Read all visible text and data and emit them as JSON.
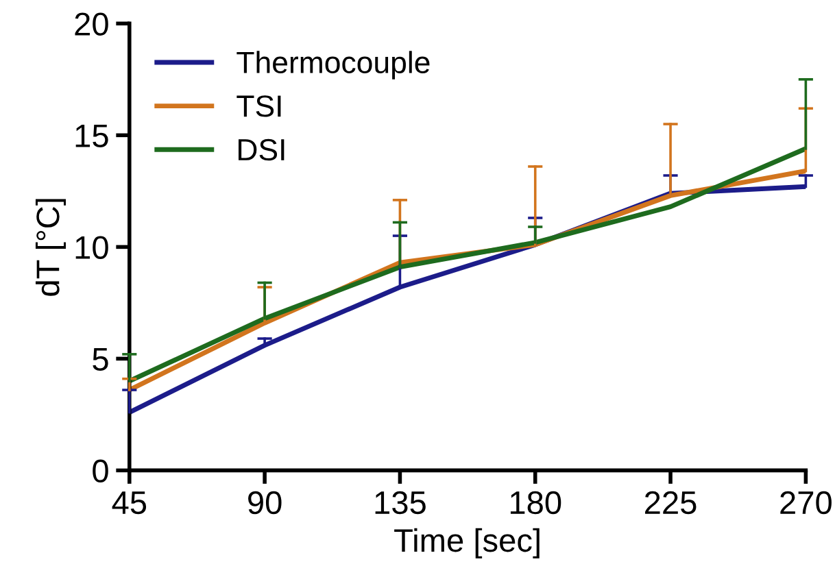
{
  "chart_data": {
    "type": "line",
    "xlabel": "Time [sec]",
    "ylabel": "dT [°C]",
    "x": [
      45,
      90,
      135,
      180,
      225,
      270
    ],
    "series": [
      {
        "name": "Thermocouple",
        "color": "#1c1c8a",
        "values": [
          2.6,
          5.6,
          8.2,
          10.1,
          12.4,
          12.7
        ],
        "errors": [
          [
            2.6,
            3.6
          ],
          [
            5.6,
            5.9
          ],
          [
            8.2,
            10.5
          ],
          [
            10.1,
            11.3
          ],
          [
            12.4,
            13.2
          ],
          [
            12.7,
            13.2
          ]
        ]
      },
      {
        "name": "TSI",
        "color": "#d2751e",
        "values": [
          3.6,
          6.6,
          9.3,
          10.1,
          12.3,
          13.4
        ],
        "errors": [
          [
            3.6,
            4.1
          ],
          [
            6.6,
            8.2
          ],
          [
            9.3,
            12.1
          ],
          [
            10.1,
            13.6
          ],
          [
            12.3,
            15.5
          ],
          [
            13.4,
            16.2
          ]
        ]
      },
      {
        "name": "DSI",
        "color": "#1e6b1e",
        "values": [
          4.0,
          6.8,
          9.1,
          10.2,
          11.8,
          14.4
        ],
        "errors": [
          [
            4.0,
            5.2
          ],
          [
            6.8,
            8.4
          ],
          [
            9.1,
            11.1
          ],
          [
            10.2,
            10.9
          ],
          null,
          [
            14.4,
            17.5
          ]
        ]
      }
    ],
    "xlim": [
      45,
      270
    ],
    "xticks": [
      45,
      90,
      135,
      180,
      225,
      270
    ],
    "ylim": [
      0,
      20
    ],
    "yticks": [
      0,
      5,
      10,
      15,
      20
    ],
    "grid": false,
    "legend": "top left",
    "marker": "none",
    "line_style": "solid"
  }
}
